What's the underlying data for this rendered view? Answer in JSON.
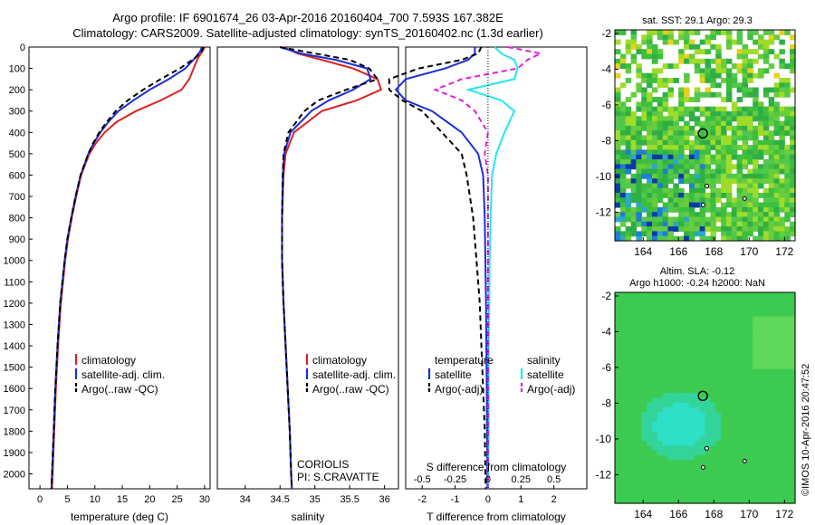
{
  "header": {
    "title_line1": "Argo profile: IF 6901674_26 03-Apr-2016 20160404_700 7.593S 167.382E",
    "title_line2": "Climatology: CARS2009. Satellite-adjusted climatology: synTS_20160402.nc (1.3d earlier)"
  },
  "side": {
    "credit": "©IMOS 10-Apr-2016 20:47:52"
  },
  "colors": {
    "climatology": "#e02020",
    "satellite": "#1a2fd6",
    "argo": "#000000",
    "sal_satellite": "#22e8ee",
    "sal_argo": "#e020e0"
  },
  "chart_data": [
    {
      "id": "temperature",
      "type": "line",
      "xlabel": "temperature (deg C)",
      "ylabel": "",
      "xlim": [
        -2,
        31
      ],
      "ylim": [
        2070,
        0
      ],
      "xticks": [
        0,
        5,
        10,
        15,
        20,
        25,
        30
      ],
      "yticks": [
        0,
        100,
        200,
        300,
        400,
        500,
        600,
        700,
        800,
        900,
        1000,
        1100,
        1200,
        1300,
        1400,
        1500,
        1600,
        1700,
        1800,
        1900,
        2000
      ],
      "depth": [
        0,
        20,
        50,
        100,
        150,
        200,
        250,
        300,
        350,
        400,
        450,
        500,
        600,
        700,
        800,
        900,
        1000,
        1200,
        1400,
        1600,
        1800,
        2000,
        2070
      ],
      "series": [
        {
          "name": "climatology",
          "style": "solid",
          "values": [
            30,
            29.6,
            28.8,
            28,
            27.2,
            25.8,
            22,
            17.5,
            14,
            11.8,
            10.2,
            9,
            7.5,
            6.6,
            5.8,
            5.1,
            4.6,
            3.8,
            3.3,
            2.9,
            2.6,
            2.3,
            2.2
          ]
        },
        {
          "name": "satellite-adj. clim.",
          "style": "solid",
          "values": [
            29.5,
            29.2,
            28.3,
            26.5,
            23.5,
            20,
            17,
            14.3,
            12.5,
            11,
            9.8,
            8.8,
            7.4,
            6.5,
            5.7,
            5.0,
            4.5,
            3.7,
            3.2,
            2.8,
            2.5,
            2.2,
            2.1
          ]
        },
        {
          "name": "Argo(..raw -QC)",
          "style": "dashed",
          "values": [
            29.8,
            29.5,
            28.3,
            25.5,
            22,
            18.8,
            16,
            13.8,
            12.2,
            10.8,
            9.7,
            8.8,
            7.4,
            6.5,
            5.7,
            5.0,
            4.5,
            3.7,
            3.2,
            2.8,
            2.5,
            2.2,
            2.1
          ]
        }
      ],
      "legend": [
        {
          "label": "climatology",
          "color": "#e02020",
          "style": "solid"
        },
        {
          "label": "satellite-adj. clim.",
          "color": "#1a2fd6",
          "style": "solid"
        },
        {
          "label": "Argo(..raw -QC)",
          "color": "#000000",
          "style": "dashed"
        }
      ]
    },
    {
      "id": "salinity",
      "type": "line",
      "xlabel": "salinity",
      "ylabel": "",
      "xlim": [
        33.6,
        36.2
      ],
      "ylim": [
        2070,
        0
      ],
      "xticks": [
        34,
        34.5,
        35,
        35.5,
        36
      ],
      "depth": [
        0,
        30,
        60,
        100,
        150,
        200,
        250,
        300,
        400,
        500,
        600,
        800,
        1000,
        1200,
        1400,
        1600,
        1800,
        2000,
        2070
      ],
      "series": [
        {
          "name": "climatology",
          "style": "solid",
          "values": [
            34.55,
            34.75,
            35.1,
            35.55,
            35.9,
            35.95,
            35.6,
            35.1,
            34.7,
            34.58,
            34.55,
            34.53,
            34.53,
            34.55,
            34.58,
            34.61,
            34.64,
            34.66,
            34.67
          ]
        },
        {
          "name": "satellite-adj. clim.",
          "style": "solid",
          "values": [
            34.5,
            34.8,
            35.3,
            35.75,
            35.8,
            35.55,
            35.2,
            34.95,
            34.65,
            34.56,
            34.54,
            34.53,
            34.53,
            34.55,
            34.58,
            34.61,
            34.64,
            34.66,
            34.67
          ]
        },
        {
          "name": "Argo(..raw -QC)",
          "style": "dashed",
          "values": [
            34.5,
            35.0,
            35.5,
            35.78,
            35.9,
            35.45,
            35.05,
            34.85,
            34.62,
            34.55,
            34.54,
            34.53,
            34.53,
            34.55,
            34.58,
            34.61,
            34.64,
            34.66,
            34.67
          ]
        }
      ],
      "legend": [
        {
          "label": "climatology",
          "color": "#e02020",
          "style": "solid"
        },
        {
          "label": "satellite-adj. clim.",
          "color": "#1a2fd6",
          "style": "solid"
        },
        {
          "label": "Argo(..raw -QC)",
          "color": "#000000",
          "style": "dashed"
        }
      ],
      "annotations": [
        "CORIOLIS",
        "PI: S.CRAVATTE"
      ]
    },
    {
      "id": "difference",
      "type": "line",
      "xlabel": "T difference from climatology",
      "top_label": "S difference from climatology",
      "ylabel": "",
      "xlim": [
        -2.5,
        3
      ],
      "ylim": [
        2070,
        0
      ],
      "xticks": [
        -2,
        -1,
        0,
        1,
        2
      ],
      "s_ticks": [
        {
          "label": "-0.5",
          "t": -2
        },
        {
          "label": "-0.25",
          "t": -1
        },
        {
          "label": "0",
          "t": 0
        },
        {
          "label": "0.25",
          "t": 1
        },
        {
          "label": "0.5",
          "t": 2
        }
      ],
      "depth": [
        0,
        30,
        60,
        100,
        150,
        200,
        250,
        300,
        400,
        500,
        600,
        800,
        1000,
        1200,
        1400,
        1600,
        1800,
        2000,
        2070
      ],
      "series": [
        {
          "name": "temperature satellite",
          "color": "#1a2fd6",
          "style": "solid",
          "values": [
            -0.4,
            -0.4,
            -0.6,
            -1.3,
            -2.5,
            -2.8,
            -2.5,
            -1.7,
            -0.8,
            -0.3,
            -0.15,
            -0.1,
            -0.08,
            -0.06,
            -0.05,
            -0.04,
            -0.03,
            -0.02,
            -0.02
          ]
        },
        {
          "name": "temperature Argo(-adj)",
          "color": "#000000",
          "style": "dashed",
          "values": [
            -0.2,
            -0.3,
            -0.8,
            -2.1,
            -3,
            -3,
            -2.6,
            -2.0,
            -1.4,
            -0.8,
            -0.65,
            -0.45,
            -0.35,
            -0.25,
            -0.2,
            -0.15,
            -0.1,
            -0.08,
            -0.07
          ]
        },
        {
          "name": "salinity satellite",
          "color": "#22e8ee",
          "style": "solid",
          "values": [
            0.2,
            0.4,
            0.8,
            0.9,
            0.8,
            -0.6,
            0.4,
            0.8,
            0.5,
            0.25,
            0.12,
            0.08,
            0.05,
            0.04,
            0.02,
            0.02,
            0.02,
            0.0,
            0.0
          ]
        },
        {
          "name": "salinity Argo(-adj)",
          "color": "#e020e0",
          "style": "dashed",
          "values": [
            0.6,
            1.6,
            1.2,
            0.9,
            -0.8,
            -1.6,
            -0.8,
            -0.4,
            0.0,
            -0.1,
            0.0,
            0.0,
            0.0,
            0.0,
            0.0,
            0.0,
            0.0,
            0.0,
            0.0
          ]
        }
      ],
      "legend_headers": [
        "temperature",
        "salinity"
      ],
      "legend": [
        {
          "label": "satellite",
          "color": "#1a2fd6",
          "style": "solid",
          "col": 0
        },
        {
          "label": "Argo(-adj)",
          "color": "#000000",
          "style": "dashed",
          "col": 0
        },
        {
          "label": "satellite",
          "color": "#22e8ee",
          "style": "solid",
          "col": 1
        },
        {
          "label": "Argo(-adj)",
          "color": "#e020e0",
          "style": "dashed",
          "col": 1
        }
      ]
    },
    {
      "id": "sst_map",
      "type": "heatmap",
      "title": "sat. SST: 29.1 Argo: 29.3",
      "xlim": [
        162.4,
        172.6
      ],
      "ylim": [
        -13.6,
        -1.8
      ],
      "xticks": [
        164,
        166,
        168,
        170,
        172
      ],
      "yticks": [
        -2,
        -4,
        -6,
        -8,
        -10,
        -12
      ],
      "marker": {
        "lon": 167.38,
        "lat": -7.59
      }
    },
    {
      "id": "sla_map",
      "type": "heatmap",
      "title": "Altim. SLA: -0.12",
      "subtitle": "Argo h1000: -0.24 h2000: NaN",
      "xlim": [
        162.4,
        172.6
      ],
      "ylim": [
        -13.6,
        -1.8
      ],
      "xticks": [
        164,
        166,
        168,
        170,
        172
      ],
      "yticks": [
        -2,
        -4,
        -6,
        -8,
        -10,
        -12
      ],
      "marker": {
        "lon": 167.38,
        "lat": -7.59
      }
    }
  ]
}
